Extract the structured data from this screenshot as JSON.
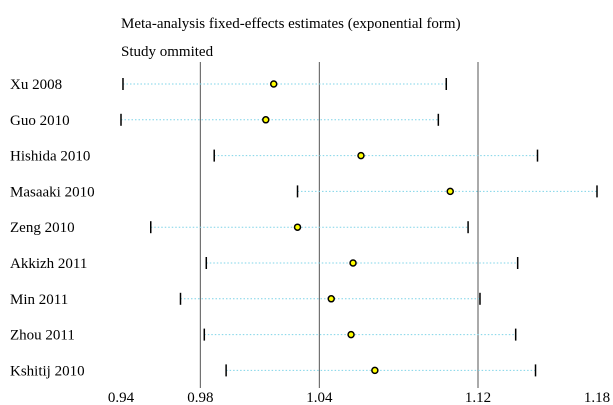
{
  "chart_data": {
    "type": "scatter",
    "subtype": "forest-plot",
    "title": "Meta-analysis fixed-effects estimates (exponential form)",
    "subtitle": "Study ommited",
    "xlim": [
      0.94,
      1.18
    ],
    "x_ticks": [
      "0.94",
      "0.98",
      "1.04",
      "1.12",
      "1.18"
    ],
    "reference_lines": [
      0.98,
      1.04,
      1.12
    ],
    "point_color": "#ffff00",
    "interval_color": "#7fd4e8",
    "studies": [
      {
        "label": "Xu 2008",
        "lower": 0.941,
        "estimate": 1.017,
        "upper": 1.104
      },
      {
        "label": "Guo 2010",
        "lower": 0.94,
        "estimate": 1.013,
        "upper": 1.1
      },
      {
        "label": "Hishida 2010",
        "lower": 0.987,
        "estimate": 1.061,
        "upper": 1.15
      },
      {
        "label": "Masaaki 2010",
        "lower": 1.029,
        "estimate": 1.106,
        "upper": 1.18
      },
      {
        "label": "Zeng 2010",
        "lower": 0.955,
        "estimate": 1.029,
        "upper": 1.115
      },
      {
        "label": "Akkizh 2011",
        "lower": 0.983,
        "estimate": 1.057,
        "upper": 1.14
      },
      {
        "label": "Min 2011",
        "lower": 0.97,
        "estimate": 1.046,
        "upper": 1.121
      },
      {
        "label": "Zhou 2011",
        "lower": 0.982,
        "estimate": 1.056,
        "upper": 1.139
      },
      {
        "label": "Kshitij 2010",
        "lower": 0.993,
        "estimate": 1.068,
        "upper": 1.149
      }
    ]
  }
}
